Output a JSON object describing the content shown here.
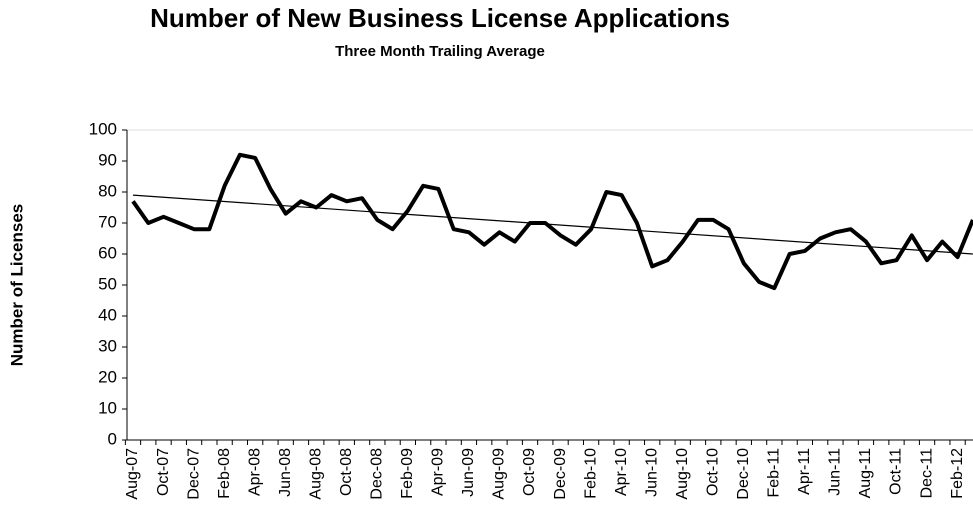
{
  "chart_data": {
    "type": "line",
    "title": "Number of New Business License Applications",
    "subtitle": "Three Month Trailing Average",
    "y_label": "Number of Licenses",
    "categories": [
      "Aug-07",
      null,
      "Oct-07",
      null,
      "Dec-07",
      null,
      "Feb-08",
      null,
      "Apr-08",
      null,
      "Jun-08",
      null,
      "Aug-08",
      null,
      "Oct-08",
      null,
      "Dec-08",
      null,
      "Feb-09",
      null,
      "Apr-09",
      null,
      "Jun-09",
      null,
      "Aug-09",
      null,
      "Oct-09",
      null,
      "Dec-09",
      null,
      "Feb-10",
      null,
      "Apr-10",
      null,
      "Jun-10",
      null,
      "Aug-10",
      null,
      "Oct-10",
      null,
      "Dec-10",
      null,
      "Feb-11",
      null,
      "Apr-11",
      null,
      "Jun-11",
      null,
      "Aug-11",
      null,
      "Oct-11",
      null,
      "Dec-11",
      null,
      "Feb-12",
      null
    ],
    "series": [
      {
        "color": "#000000",
        "values": [
          77,
          70,
          72,
          70,
          68,
          68,
          82,
          92,
          91,
          81,
          73,
          77,
          75,
          79,
          77,
          78,
          71,
          68,
          74,
          82,
          81,
          68,
          67,
          63,
          67,
          64,
          70,
          70,
          66,
          63,
          68,
          80,
          79,
          70,
          56,
          58,
          64,
          71,
          71,
          68,
          57,
          51,
          49,
          60,
          61,
          65,
          67,
          68,
          64,
          57,
          58,
          66,
          58,
          64,
          59,
          71
        ]
      }
    ],
    "trendline": {
      "start": 79,
      "end": 60
    },
    "ylim": [
      0,
      100
    ],
    "yticks": [
      0,
      10,
      20,
      30,
      40,
      50,
      60,
      70,
      80,
      90,
      100
    ],
    "grid": false
  }
}
